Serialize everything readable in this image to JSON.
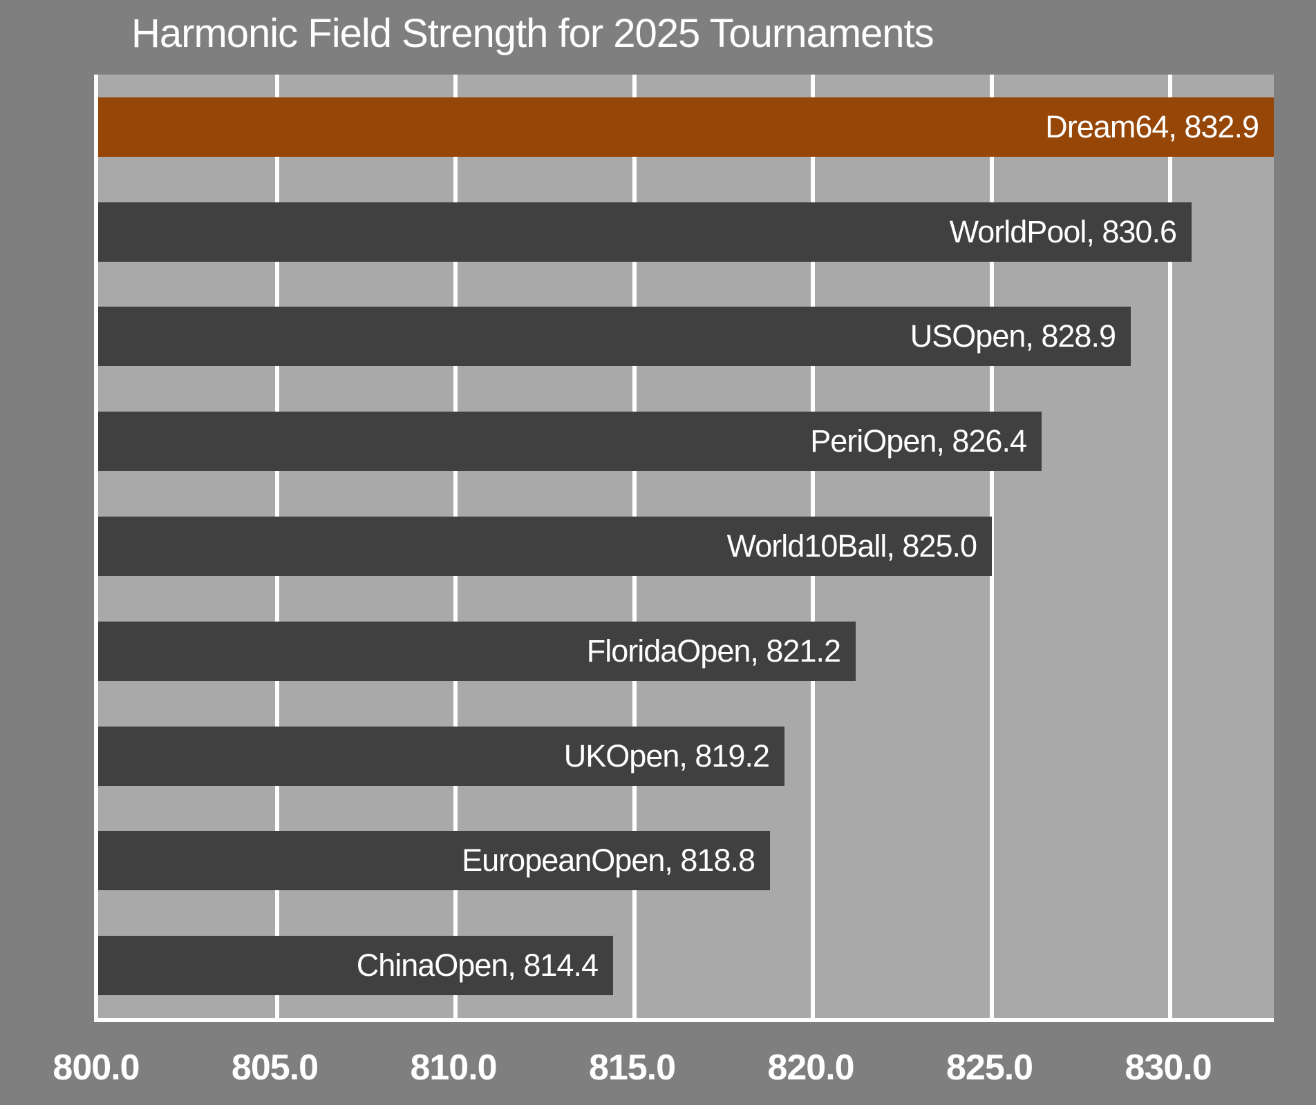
{
  "page": {
    "background": "#7f7f7f"
  },
  "chart_data": {
    "type": "bar",
    "orientation": "horizontal",
    "title": "Harmonic Field Strength for 2025 Tournaments",
    "categories": [
      "Dream64",
      "WorldPool",
      "USOpen",
      "PeriOpen",
      "World10Ball",
      "FloridaOpen",
      "UKOpen",
      "EuropeanOpen",
      "ChinaOpen"
    ],
    "values": [
      832.9,
      830.6,
      828.9,
      826.4,
      825.0,
      821.2,
      819.2,
      818.8,
      814.4
    ],
    "data_labels": [
      "Dream64, 832.9",
      "WorldPool, 830.6",
      "USOpen, 828.9",
      "PeriOpen, 826.4",
      "World10Ball, 825.0",
      "FloridaOpen, 821.2",
      "UKOpen, 819.2",
      "EuropeanOpen, 818.8",
      "ChinaOpen, 814.4"
    ],
    "xlabel": "",
    "ylabel": "",
    "xlim": [
      800.0,
      832.9
    ],
    "xticks": [
      800.0,
      805.0,
      810.0,
      815.0,
      820.0,
      825.0,
      830.0
    ],
    "xtick_labels": [
      "800.0",
      "805.0",
      "810.0",
      "815.0",
      "820.0",
      "825.0",
      "830.0"
    ],
    "grid": true,
    "legend": false,
    "highlight_index": 0,
    "colors": {
      "highlight_bar": "#964708",
      "bar": "#404040",
      "plot_background": "#a9a9a9",
      "page_background": "#7f7f7f",
      "gridline": "#ffffff",
      "text": "#ffffff"
    }
  }
}
